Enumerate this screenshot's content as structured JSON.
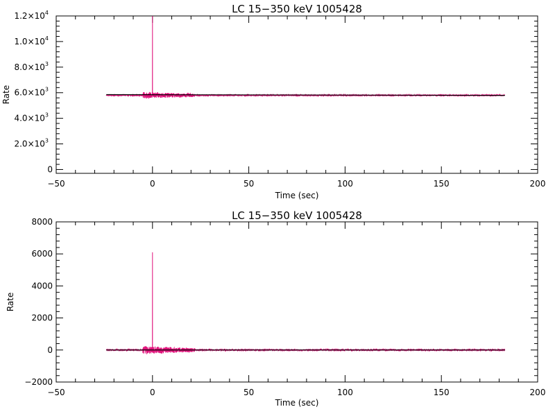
{
  "chart_data": [
    {
      "type": "line",
      "title": "LC 15−350 keV  1005428",
      "xlabel": "Time (sec)",
      "ylabel": "Rate",
      "xlim": [
        -50,
        200
      ],
      "ylim": [
        -300,
        12000
      ],
      "x_ticks": [
        -50,
        0,
        50,
        100,
        150,
        200
      ],
      "x_tick_labels": [
        "−50",
        "0",
        "50",
        "100",
        "150",
        "200"
      ],
      "y_ticks": [
        0,
        2000,
        4000,
        6000,
        8000,
        10000,
        12000
      ],
      "y_tick_labels": [
        {
          "mant": "0",
          "exp": ""
        },
        {
          "mant": "2.0×10",
          "exp": "3"
        },
        {
          "mant": "4.0×10",
          "exp": "3"
        },
        {
          "mant": "6.0×10",
          "exp": "3"
        },
        {
          "mant": "8.0×10",
          "exp": "3"
        },
        {
          "mant": "1.0×10",
          "exp": "4"
        },
        {
          "mant": "1.2×10",
          "exp": "4"
        }
      ],
      "series": [
        {
          "color": "#e0147c",
          "x_start": -24,
          "x_end": 183,
          "baseline": 5800,
          "noisy_range": [
            -5,
            22
          ],
          "noise_amplitude": 250,
          "spike": {
            "x": 0,
            "y": 12000
          }
        },
        {
          "color": "#000000",
          "model": [
            [
              -24,
              5850
            ],
            [
              183,
              5790
            ]
          ]
        }
      ]
    },
    {
      "type": "line",
      "title": "LC 15−350 keV  1005428",
      "xlabel": "Time (sec)",
      "ylabel": "Rate",
      "xlim": [
        -50,
        200
      ],
      "ylim": [
        -2000,
        8000
      ],
      "x_ticks": [
        -50,
        0,
        50,
        100,
        150,
        200
      ],
      "x_tick_labels": [
        "−50",
        "0",
        "50",
        "100",
        "150",
        "200"
      ],
      "y_ticks": [
        -2000,
        0,
        2000,
        4000,
        6000,
        8000
      ],
      "y_tick_labels": [
        {
          "mant": "−2000",
          "exp": ""
        },
        {
          "mant": "0",
          "exp": ""
        },
        {
          "mant": "2000",
          "exp": ""
        },
        {
          "mant": "4000",
          "exp": ""
        },
        {
          "mant": "6000",
          "exp": ""
        },
        {
          "mant": "8000",
          "exp": ""
        }
      ],
      "series": [
        {
          "color": "#e0147c",
          "x_start": -24,
          "x_end": 183,
          "baseline": 0,
          "noisy_range": [
            -5,
            22
          ],
          "noise_amplitude": 250,
          "spike": {
            "x": 0,
            "y": 6100
          }
        },
        {
          "color": "#000000",
          "model": [
            [
              -24,
              0
            ],
            [
              183,
              0
            ]
          ]
        }
      ]
    }
  ]
}
